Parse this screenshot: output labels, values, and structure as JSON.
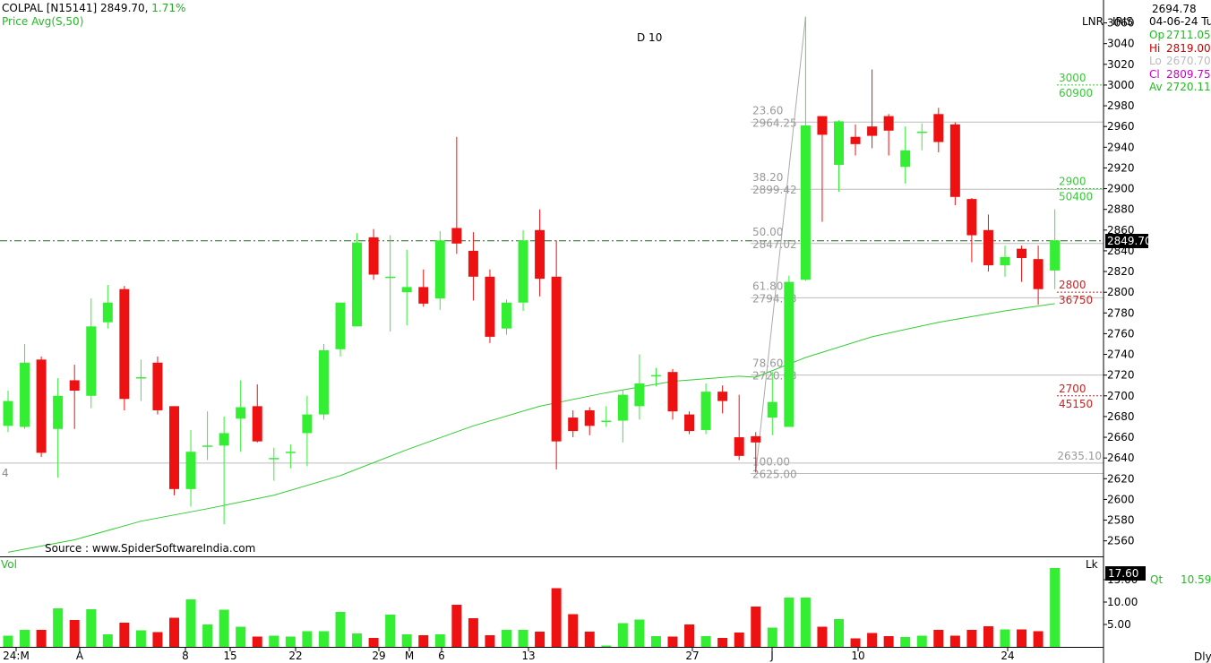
{
  "header": {
    "symbol": "COLPAL [N15141]",
    "price": "2849.70,",
    "change": "1.71%",
    "indicator": "Price  Avg(S,50)",
    "marker": "D 10",
    "source": "Source : www.SpiderSoftwareIndia.com",
    "lnr": "LNR",
    "iris": "IRIS"
  },
  "info_panel": {
    "cursor_value": "2694.78",
    "date": "04-06-24 Tu",
    "rows": [
      {
        "label": "Op",
        "value": "2711.05",
        "color": "#22bb22"
      },
      {
        "label": "Hi",
        "value": "2819.00",
        "color": "#cc0000"
      },
      {
        "label": "Lo",
        "value": "2670.70",
        "color": "#bbbbbb"
      },
      {
        "label": "Cl",
        "value": "2809.75",
        "color": "#cc00cc"
      },
      {
        "label": "Av",
        "value": "2720.11",
        "color": "#22bb22"
      }
    ]
  },
  "volume_panel": {
    "title": "Vol",
    "lk": "Lk",
    "current": "17.60",
    "qt_label": "Qt",
    "qt_value": "10.59",
    "period": "Dly"
  },
  "left_marker": "4",
  "colors": {
    "up": "#33ee33",
    "down": "#ee1111",
    "avg": "#33cc33",
    "fib": "#999999"
  },
  "chart_data": {
    "type": "candlestick",
    "ylim": [
      2545,
      3070
    ],
    "y_ticks": [
      2560,
      2580,
      2600,
      2620,
      2640,
      2660,
      2680,
      2700,
      2720,
      2740,
      2760,
      2780,
      2800,
      2820,
      2840,
      2860,
      2880,
      2900,
      2920,
      2940,
      2960,
      2980,
      3000,
      3020,
      3040,
      3060
    ],
    "current_price": "2849.70",
    "x_labels": [
      "24:M",
      "A",
      "8",
      "15",
      "22",
      "29",
      "M",
      "6",
      "13",
      "27",
      "J",
      "10",
      "24"
    ],
    "candles": [
      {
        "o": 2671,
        "h": 2705,
        "l": 2665,
        "c": 2695
      },
      {
        "o": 2670,
        "h": 2750,
        "l": 2668,
        "c": 2732
      },
      {
        "o": 2735,
        "h": 2738,
        "l": 2641,
        "c": 2645
      },
      {
        "o": 2668,
        "h": 2717,
        "l": 2621,
        "c": 2700
      },
      {
        "o": 2715,
        "h": 2730,
        "l": 2668,
        "c": 2705
      },
      {
        "o": 2700,
        "h": 2794,
        "l": 2688,
        "c": 2767
      },
      {
        "o": 2771,
        "h": 2807,
        "l": 2765,
        "c": 2790
      },
      {
        "o": 2803,
        "h": 2806,
        "l": 2686,
        "c": 2697
      },
      {
        "o": 2718,
        "h": 2735,
        "l": 2695,
        "c": 2718
      },
      {
        "o": 2732,
        "h": 2738,
        "l": 2682,
        "c": 2686
      },
      {
        "o": 2690,
        "h": 2690,
        "l": 2604,
        "c": 2610
      },
      {
        "o": 2610,
        "h": 2667,
        "l": 2593,
        "c": 2646
      },
      {
        "o": 2652,
        "h": 2685,
        "l": 2638,
        "c": 2652
      },
      {
        "o": 2652,
        "h": 2680,
        "l": 2576,
        "c": 2664
      },
      {
        "o": 2678,
        "h": 2715,
        "l": 2646,
        "c": 2689
      },
      {
        "o": 2690,
        "h": 2711,
        "l": 2655,
        "c": 2656
      },
      {
        "o": 2640,
        "h": 2650,
        "l": 2618,
        "c": 2640
      },
      {
        "o": 2646,
        "h": 2653,
        "l": 2630,
        "c": 2646
      },
      {
        "o": 2664,
        "h": 2700,
        "l": 2632,
        "c": 2682
      },
      {
        "o": 2682,
        "h": 2750,
        "l": 2677,
        "c": 2744
      },
      {
        "o": 2745,
        "h": 2790,
        "l": 2738,
        "c": 2790
      },
      {
        "o": 2767,
        "h": 2857,
        "l": 2767,
        "c": 2848
      },
      {
        "o": 2853,
        "h": 2861,
        "l": 2812,
        "c": 2817
      },
      {
        "o": 2815,
        "h": 2855,
        "l": 2762,
        "c": 2815
      },
      {
        "o": 2800,
        "h": 2841,
        "l": 2768,
        "c": 2805
      },
      {
        "o": 2805,
        "h": 2822,
        "l": 2786,
        "c": 2789
      },
      {
        "o": 2794,
        "h": 2859,
        "l": 2783,
        "c": 2850
      },
      {
        "o": 2862,
        "h": 2950,
        "l": 2837,
        "c": 2847
      },
      {
        "o": 2840,
        "h": 2858,
        "l": 2792,
        "c": 2815
      },
      {
        "o": 2815,
        "h": 2822,
        "l": 2751,
        "c": 2757
      },
      {
        "o": 2765,
        "h": 2793,
        "l": 2759,
        "c": 2790
      },
      {
        "o": 2790,
        "h": 2860,
        "l": 2782,
        "c": 2850
      },
      {
        "o": 2860,
        "h": 2880,
        "l": 2796,
        "c": 2813
      },
      {
        "o": 2815,
        "h": 2850,
        "l": 2629,
        "c": 2656
      },
      {
        "o": 2679,
        "h": 2686,
        "l": 2660,
        "c": 2666
      },
      {
        "o": 2686,
        "h": 2689,
        "l": 2662,
        "c": 2671
      },
      {
        "o": 2676,
        "h": 2690,
        "l": 2670,
        "c": 2676
      },
      {
        "o": 2676,
        "h": 2706,
        "l": 2655,
        "c": 2701
      },
      {
        "o": 2690,
        "h": 2740,
        "l": 2677,
        "c": 2712
      },
      {
        "o": 2720,
        "h": 2727,
        "l": 2709,
        "c": 2720
      },
      {
        "o": 2723,
        "h": 2726,
        "l": 2677,
        "c": 2685
      },
      {
        "o": 2682,
        "h": 2685,
        "l": 2663,
        "c": 2666
      },
      {
        "o": 2667,
        "h": 2712,
        "l": 2663,
        "c": 2704
      },
      {
        "o": 2704,
        "h": 2710,
        "l": 2683,
        "c": 2695
      },
      {
        "o": 2660,
        "h": 2701,
        "l": 2638,
        "c": 2642
      },
      {
        "o": 2661,
        "h": 2665,
        "l": 2626,
        "c": 2655
      },
      {
        "o": 2679,
        "h": 2723,
        "l": 2662,
        "c": 2694
      },
      {
        "o": 2670,
        "h": 2816,
        "l": 2670,
        "c": 2810
      },
      {
        "o": 2812,
        "h": 3066,
        "l": 2811,
        "c": 2961
      },
      {
        "o": 2970,
        "h": 2970,
        "l": 2868,
        "c": 2952
      },
      {
        "o": 2923,
        "h": 2966,
        "l": 2897,
        "c": 2965
      },
      {
        "o": 2950,
        "h": 2962,
        "l": 2932,
        "c": 2943
      },
      {
        "o": 2960,
        "h": 3015,
        "l": 2939,
        "c": 2951
      },
      {
        "o": 2970,
        "h": 2972,
        "l": 2932,
        "c": 2956
      },
      {
        "o": 2921,
        "h": 2960,
        "l": 2905,
        "c": 2937
      },
      {
        "o": 2955,
        "h": 2963,
        "l": 2937,
        "c": 2955
      },
      {
        "o": 2972,
        "h": 2978,
        "l": 2935,
        "c": 2945
      },
      {
        "o": 2962,
        "h": 2964,
        "l": 2884,
        "c": 2892
      },
      {
        "o": 2890,
        "h": 2891,
        "l": 2829,
        "c": 2855
      },
      {
        "o": 2860,
        "h": 2875,
        "l": 2820,
        "c": 2826
      },
      {
        "o": 2826,
        "h": 2845,
        "l": 2815,
        "c": 2834
      },
      {
        "o": 2842,
        "h": 2845,
        "l": 2810,
        "c": 2833
      },
      {
        "o": 2832,
        "h": 2845,
        "l": 2788,
        "c": 2803
      },
      {
        "o": 2821,
        "h": 2880,
        "l": 2803,
        "c": 2850
      }
    ],
    "volume": [
      2.5,
      3.8,
      3.8,
      8.6,
      6.0,
      8.4,
      2.8,
      5.4,
      3.7,
      3.3,
      6.5,
      10.6,
      5.0,
      8.3,
      4.5,
      2.3,
      2.5,
      2.3,
      3.5,
      3.5,
      7.8,
      3.0,
      2.0,
      7.2,
      2.8,
      2.6,
      2.8,
      9.4,
      6.4,
      2.6,
      3.8,
      3.8,
      3.4,
      13.1,
      7.3,
      3.4,
      0.3,
      5.3,
      6.1,
      2.4,
      2.3,
      5.0,
      2.4,
      2.0,
      3.2,
      9.0,
      4.3,
      11.0,
      11.0,
      4.5,
      6.2,
      1.9,
      3.1,
      2.4,
      2.2,
      2.5,
      3.8,
      2.5,
      3.8,
      4.6,
      3.9,
      3.9,
      3.5,
      17.6
    ],
    "moving_average": {
      "name": "Avg(S,50)",
      "points": [
        [
          0,
          2549
        ],
        [
          4,
          2561
        ],
        [
          8,
          2579
        ],
        [
          12,
          2591
        ],
        [
          16,
          2604
        ],
        [
          20,
          2623
        ],
        [
          24,
          2648
        ],
        [
          28,
          2671
        ],
        [
          32,
          2690
        ],
        [
          36,
          2703
        ],
        [
          40,
          2714
        ],
        [
          44,
          2719
        ],
        [
          45,
          2718
        ],
        [
          48,
          2737
        ],
        [
          52,
          2757
        ],
        [
          56,
          2771
        ],
        [
          60,
          2782
        ],
        [
          63,
          2789
        ]
      ]
    },
    "fibonacci": {
      "levels": [
        {
          "pct": "23.60",
          "price": "2964.25",
          "value": 2964.25
        },
        {
          "pct": "38.20",
          "price": "2899.42",
          "value": 2899.42
        },
        {
          "pct": "50.00",
          "price": "2847.02",
          "value": 2847.02
        },
        {
          "pct": "61.80",
          "price": "2794.63",
          "value": 2794.63
        },
        {
          "pct": "78.60",
          "price": "2720.03",
          "value": 2720.03
        },
        {
          "pct": "100.00",
          "price": "2625.00",
          "value": 2625.0
        }
      ],
      "base_label": "2635.10",
      "base_value": 2635.1
    },
    "options_levels": [
      {
        "strike": "3000",
        "oi": "60900",
        "value": 3000,
        "color": "#33cc33"
      },
      {
        "strike": "2900",
        "oi": "50400",
        "value": 2900,
        "color": "#33cc33"
      },
      {
        "strike": "2800",
        "oi": "36750",
        "value": 2800,
        "color": "#cc2222"
      },
      {
        "strike": "2700",
        "oi": "45150",
        "value": 2700,
        "color": "#cc2222"
      }
    ],
    "volume_ticks": [
      5.0,
      10.0,
      15.0
    ]
  }
}
